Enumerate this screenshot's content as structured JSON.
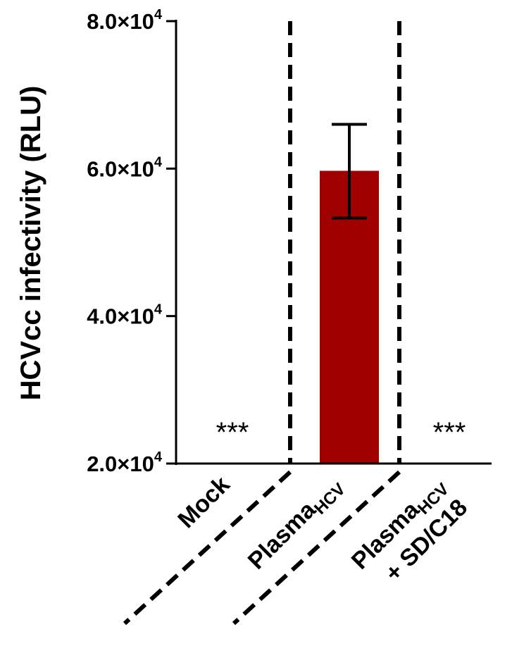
{
  "chart_data": {
    "type": "bar",
    "ylabel": "HCVcc infectivity (RLU)",
    "ylim": [
      20000,
      80000
    ],
    "y_ticks": [
      {
        "mantissa": "2.0",
        "times": "×",
        "base": "10",
        "exp": "4"
      },
      {
        "mantissa": "4.0",
        "times": "×",
        "base": "10",
        "exp": "4"
      },
      {
        "mantissa": "6.0",
        "times": "×",
        "base": "10",
        "exp": "4"
      },
      {
        "mantissa": "8.0",
        "times": "×",
        "base": "10",
        "exp": "4"
      }
    ],
    "y_tick_values": [
      20000,
      40000,
      60000,
      80000
    ],
    "categories": [
      {
        "main": "Mock",
        "sub": "",
        "line2": ""
      },
      {
        "main": "Plasma",
        "sub": "HCV",
        "line2": ""
      },
      {
        "main": "Plasma",
        "sub": "HCV",
        "line2": "+ SD/C18"
      }
    ],
    "values": [
      null,
      59700,
      null
    ],
    "error_upper": [
      null,
      66000,
      null
    ],
    "error_lower": [
      null,
      53300,
      null
    ],
    "bar_color": "#a00000",
    "annotations": [
      "***",
      null,
      "***"
    ],
    "grid": false
  }
}
